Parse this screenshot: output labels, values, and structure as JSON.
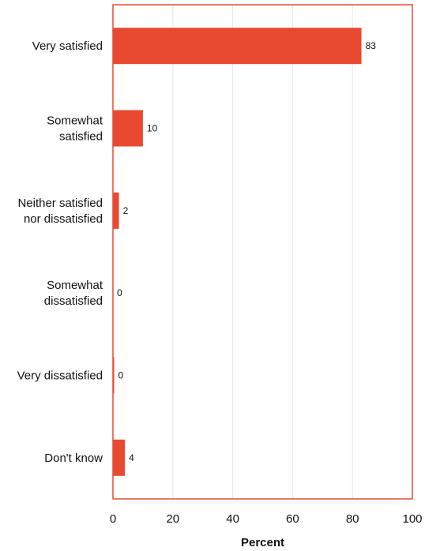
{
  "chart_data": {
    "type": "bar",
    "orientation": "horizontal",
    "categories": [
      [
        "Very satisfied"
      ],
      [
        "Somewhat",
        "satisfied"
      ],
      [
        "Neither satisfied",
        "nor dissatisfied"
      ],
      [
        "Somewhat",
        "dissatisfied"
      ],
      [
        "Very dissatisfied"
      ],
      [
        "Don't know"
      ]
    ],
    "values": [
      83,
      10,
      2,
      0,
      0,
      4
    ],
    "data_labels": [
      "83",
      "10",
      "2",
      "0",
      "0",
      "4"
    ],
    "xlabel": "Percent",
    "xlim": [
      0,
      100
    ],
    "xticks": [
      0,
      20,
      40,
      60,
      80,
      100
    ],
    "xtick_labels": [
      "0",
      "20",
      "40",
      "60",
      "80",
      "100"
    ],
    "grid": "vertical",
    "legend": "none",
    "colors": {
      "bar": "#e84a31",
      "frame": "#e84a31",
      "grid": "#e6e6e6",
      "text": "#111111"
    }
  }
}
